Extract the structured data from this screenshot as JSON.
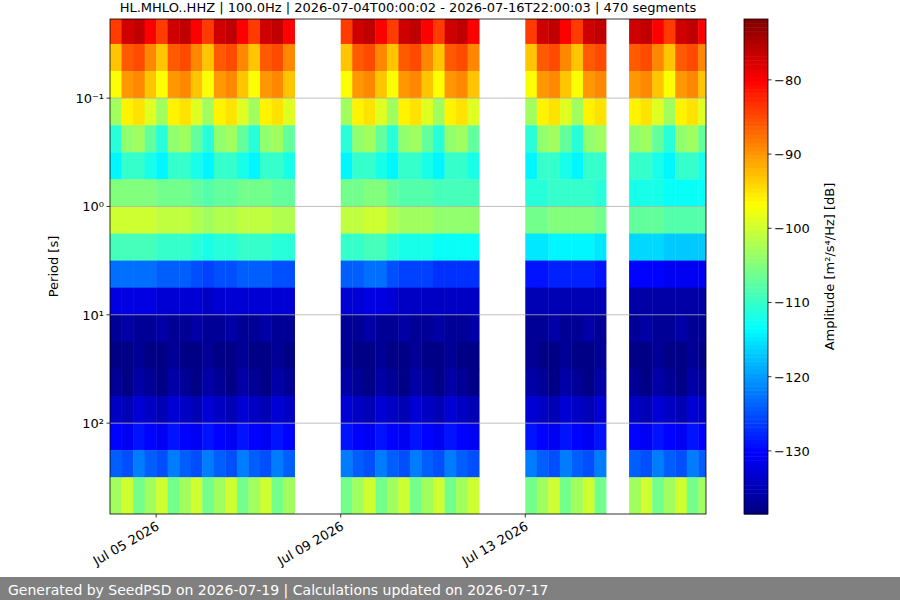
{
  "chart_data": {
    "type": "heatmap",
    "title": "HL.MHLO..HHZ | 100.0Hz | 2026-07-04T00:00:02 - 2026-07-16T22:00:03 | 470 segments",
    "ylabel": "Period [s]",
    "footer": "Generated by SeedPSD on 2026-07-19 | Calculations updated on 2026-07-17",
    "log": "y",
    "grid": "y",
    "xlim": [
      "2026-07-04T00:00:02",
      "2026-07-16T22:00:03"
    ],
    "xticks": [
      {
        "value": "2026-07-05T00:00",
        "label": "Jul 05 2026"
      },
      {
        "value": "2026-07-09T00:00",
        "label": "Jul 09 2026"
      },
      {
        "value": "2026-07-13T00:00",
        "label": "Jul 13 2026"
      }
    ],
    "ylim": [
      0.0186,
      690
    ],
    "yticks": [
      {
        "value": 0.1,
        "label": "10⁻¹"
      },
      {
        "value": 1,
        "label": "10⁰"
      },
      {
        "value": 10,
        "label": "10¹"
      },
      {
        "value": 100,
        "label": "10²"
      }
    ],
    "x_edges": [
      "2026-07-04T00:00",
      "2026-07-04T06:00",
      "2026-07-04T12:00",
      "2026-07-04T18:00",
      "2026-07-05T00:00",
      "2026-07-05T06:00",
      "2026-07-05T12:00",
      "2026-07-05T18:00",
      "2026-07-06T00:00",
      "2026-07-06T06:00",
      "2026-07-06T12:00",
      "2026-07-06T18:00",
      "2026-07-07T00:00",
      "2026-07-07T06:00",
      "2026-07-07T12:00",
      "2026-07-07T18:00",
      "2026-07-08T00:00",
      "2026-07-08T06:00",
      "2026-07-08T12:00",
      "2026-07-08T18:00",
      "2026-07-09T00:00",
      "2026-07-09T06:00",
      "2026-07-09T12:00",
      "2026-07-09T18:00",
      "2026-07-10T00:00",
      "2026-07-10T06:00",
      "2026-07-10T12:00",
      "2026-07-10T18:00",
      "2026-07-11T00:00",
      "2026-07-11T06:00",
      "2026-07-11T12:00",
      "2026-07-11T18:00",
      "2026-07-12T00:00",
      "2026-07-12T06:00",
      "2026-07-12T12:00",
      "2026-07-12T18:00",
      "2026-07-13T00:00",
      "2026-07-13T06:00",
      "2026-07-13T12:00",
      "2026-07-13T18:00",
      "2026-07-14T00:00",
      "2026-07-14T06:00",
      "2026-07-14T12:00",
      "2026-07-14T18:00",
      "2026-07-15T00:00",
      "2026-07-15T06:00",
      "2026-07-15T12:00",
      "2026-07-15T18:00",
      "2026-07-16T00:00",
      "2026-07-16T06:00",
      "2026-07-16T12:00",
      "2026-07-16T18:00",
      "2026-07-17T00:00"
    ],
    "period_edges": [
      0.0186,
      0.0316,
      0.0562,
      0.1,
      0.178,
      0.316,
      0.562,
      1,
      1.78,
      3.16,
      5.62,
      10,
      17.8,
      31.6,
      56.2,
      100,
      178,
      316,
      690
    ],
    "cells": [
      [
        -84,
        -93,
        -97,
        -103,
        -111,
        -114,
        -105,
        -100,
        -109,
        -123,
        -132,
        -137,
        -138,
        -137,
        -134,
        -130,
        -124,
        -103
      ],
      [
        -77,
        -86,
        -90,
        -96,
        -104,
        -110,
        -105,
        -100,
        -109,
        -123,
        -132,
        -136,
        -138,
        -138,
        -135,
        -131,
        -125,
        -100
      ],
      [
        -76,
        -85,
        -89,
        -95,
        -103,
        -110,
        -105,
        -100,
        -109,
        -123,
        -132,
        -137,
        -137,
        -136,
        -133,
        -129,
        -122,
        -106
      ],
      [
        -80,
        -89,
        -93,
        -99,
        -107,
        -112,
        -105,
        -100,
        -109,
        -123,
        -132,
        -137,
        -138,
        -137,
        -134,
        -130,
        -124,
        -103
      ],
      [
        -84,
        -93,
        -97,
        -103,
        -111,
        -114,
        -106,
        -101,
        -110,
        -124,
        -133,
        -136,
        -138,
        -138,
        -135,
        -131,
        -125,
        -100
      ],
      [
        -77,
        -86,
        -90,
        -96,
        -104,
        -110,
        -106,
        -101,
        -110,
        -124,
        -133,
        -137,
        -137,
        -136,
        -133,
        -129,
        -122,
        -106
      ],
      [
        -76,
        -85,
        -89,
        -95,
        -103,
        -110,
        -106,
        -101,
        -110,
        -124,
        -133,
        -137,
        -138,
        -137,
        -134,
        -130,
        -124,
        -103
      ],
      [
        -80,
        -89,
        -93,
        -99,
        -107,
        -112,
        -107,
        -102,
        -111,
        -125,
        -133,
        -136,
        -138,
        -138,
        -135,
        -131,
        -125,
        -100
      ],
      [
        -84,
        -93,
        -97,
        -103,
        -111,
        -114,
        -108,
        -103,
        -112,
        -126,
        -134,
        -137,
        -137,
        -136,
        -133,
        -129,
        -122,
        -106
      ],
      [
        -77,
        -86,
        -90,
        -96,
        -104,
        -110,
        -107,
        -102,
        -111,
        -125,
        -133,
        -137,
        -138,
        -137,
        -134,
        -130,
        -124,
        -103
      ],
      [
        -76,
        -85,
        -89,
        -95,
        -103,
        -110,
        -107,
        -102,
        -111,
        -125,
        -133,
        -136,
        -138,
        -138,
        -135,
        -131,
        -125,
        -100
      ],
      [
        -80,
        -89,
        -93,
        -99,
        -107,
        -112,
        -106,
        -101,
        -110,
        -124,
        -133,
        -137,
        -137,
        -136,
        -133,
        -129,
        -122,
        -106
      ],
      [
        -84,
        -93,
        -97,
        -103,
        -111,
        -114,
        -106,
        -101,
        -110,
        -124,
        -133,
        -137,
        -138,
        -137,
        -134,
        -130,
        -124,
        -103
      ],
      [
        -77,
        -86,
        -90,
        -96,
        -104,
        -110,
        -106,
        -101,
        -110,
        -124,
        -133,
        -136,
        -138,
        -138,
        -135,
        -131,
        -125,
        -100
      ],
      [
        -76,
        -85,
        -89,
        -95,
        -103,
        -110,
        -107,
        -102,
        -111,
        -125,
        -133,
        -137,
        -137,
        -136,
        -133,
        -129,
        -122,
        -106
      ],
      [
        -80,
        -89,
        -93,
        -99,
        -107,
        -112,
        -107,
        -102,
        -111,
        -125,
        -133,
        -137,
        -138,
        -137,
        -134,
        -130,
        -124,
        -103
      ],
      null,
      null,
      null,
      null,
      [
        -84,
        -93,
        -97,
        -103,
        -111,
        -114,
        -106,
        -101,
        -110,
        -124,
        -133,
        -137,
        -137,
        -136,
        -133,
        -129,
        -122,
        -106
      ],
      [
        -77,
        -86,
        -90,
        -96,
        -104,
        -110,
        -106,
        -101,
        -110,
        -124,
        -133,
        -137,
        -138,
        -137,
        -134,
        -130,
        -124,
        -103
      ],
      [
        -76,
        -85,
        -89,
        -95,
        -103,
        -110,
        -105,
        -100,
        -109,
        -123,
        -132,
        -136,
        -138,
        -138,
        -135,
        -131,
        -125,
        -100
      ],
      [
        -80,
        -89,
        -93,
        -99,
        -107,
        -112,
        -105,
        -100,
        -109,
        -123,
        -132,
        -137,
        -137,
        -136,
        -133,
        -129,
        -122,
        -106
      ],
      [
        -84,
        -93,
        -97,
        -103,
        -111,
        -114,
        -107,
        -102,
        -111,
        -125,
        -133,
        -137,
        -138,
        -137,
        -134,
        -130,
        -124,
        -103
      ],
      [
        -77,
        -86,
        -90,
        -96,
        -104,
        -110,
        -108,
        -103,
        -112,
        -126,
        -134,
        -136,
        -138,
        -138,
        -135,
        -131,
        -125,
        -100
      ],
      [
        -76,
        -85,
        -89,
        -95,
        -103,
        -110,
        -108,
        -103,
        -112,
        -126,
        -134,
        -137,
        -137,
        -136,
        -133,
        -129,
        -122,
        -106
      ],
      [
        -80,
        -89,
        -93,
        -99,
        -107,
        -112,
        -108,
        -103,
        -112,
        -126,
        -134,
        -137,
        -138,
        -137,
        -134,
        -130,
        -124,
        -103
      ],
      [
        -84,
        -93,
        -97,
        -103,
        -111,
        -114,
        -109,
        -104,
        -113,
        -127,
        -134,
        -136,
        -138,
        -138,
        -135,
        -131,
        -125,
        -100
      ],
      [
        -77,
        -86,
        -90,
        -96,
        -104,
        -110,
        -109,
        -104,
        -113,
        -127,
        -134,
        -137,
        -137,
        -136,
        -133,
        -129,
        -122,
        -106
      ],
      [
        -76,
        -85,
        -89,
        -95,
        -103,
        -110,
        -109,
        -104,
        -113,
        -127,
        -134,
        -137,
        -138,
        -137,
        -134,
        -130,
        -124,
        -103
      ],
      [
        -80,
        -89,
        -93,
        -99,
        -107,
        -112,
        -109,
        -104,
        -113,
        -127,
        -134,
        -136,
        -138,
        -138,
        -135,
        -131,
        -125,
        -100
      ],
      null,
      null,
      null,
      null,
      [
        -84,
        -93,
        -97,
        -103,
        -111,
        -114,
        -111,
        -106,
        -115,
        -129,
        -135,
        -137,
        -137,
        -136,
        -133,
        -129,
        -122,
        -106
      ],
      [
        -77,
        -86,
        -90,
        -96,
        -104,
        -110,
        -111,
        -106,
        -115,
        -129,
        -135,
        -137,
        -138,
        -137,
        -134,
        -130,
        -124,
        -103
      ],
      [
        -76,
        -85,
        -89,
        -95,
        -103,
        -110,
        -110,
        -105,
        -114,
        -128,
        -135,
        -136,
        -138,
        -138,
        -135,
        -131,
        -125,
        -100
      ],
      [
        -80,
        -89,
        -93,
        -99,
        -107,
        -112,
        -110,
        -105,
        -114,
        -128,
        -135,
        -137,
        -137,
        -136,
        -133,
        -129,
        -122,
        -106
      ],
      [
        -84,
        -93,
        -97,
        -103,
        -111,
        -114,
        -110,
        -105,
        -114,
        -128,
        -135,
        -137,
        -138,
        -137,
        -134,
        -130,
        -124,
        -103
      ],
      [
        -77,
        -86,
        -90,
        -96,
        -104,
        -110,
        -110,
        -105,
        -114,
        -128,
        -135,
        -136,
        -138,
        -138,
        -135,
        -131,
        -125,
        -100
      ],
      [
        -76,
        -85,
        -89,
        -95,
        -103,
        -110,
        -111,
        -106,
        -115,
        -129,
        -135,
        -137,
        -137,
        -136,
        -133,
        -129,
        -122,
        -106
      ],
      null,
      null,
      [
        -77,
        -86,
        -90,
        -96,
        -104,
        -110,
        -112,
        -107,
        -116,
        -130,
        -136,
        -137,
        -138,
        -137,
        -134,
        -130,
        -124,
        -103
      ],
      [
        -76,
        -85,
        -89,
        -95,
        -103,
        -110,
        -112,
        -107,
        -116,
        -130,
        -136,
        -136,
        -138,
        -138,
        -135,
        -131,
        -125,
        -100
      ],
      [
        -80,
        -89,
        -93,
        -99,
        -107,
        -112,
        -112,
        -107,
        -116,
        -130,
        -136,
        -137,
        -137,
        -136,
        -133,
        -129,
        -122,
        -106
      ],
      [
        -84,
        -93,
        -97,
        -103,
        -111,
        -114,
        -113,
        -108,
        -117,
        -131,
        -136,
        -137,
        -138,
        -137,
        -134,
        -130,
        -124,
        -103
      ],
      [
        -77,
        -86,
        -90,
        -96,
        -104,
        -110,
        -113,
        -108,
        -117,
        -131,
        -136,
        -136,
        -138,
        -138,
        -135,
        -131,
        -125,
        -100
      ],
      [
        -76,
        -85,
        -89,
        -95,
        -103,
        -110,
        -113,
        -108,
        -117,
        -131,
        -136,
        -137,
        -137,
        -136,
        -133,
        -129,
        -122,
        -106
      ],
      [
        -80,
        -89,
        -93,
        -99,
        -107,
        -112,
        -113,
        -108,
        -117,
        -131,
        -136,
        -137,
        -138,
        -137,
        -134,
        -130,
        -124,
        -103
      ]
    ],
    "colorbar": {
      "range": [
        -138.5,
        -71.8
      ],
      "ticks": [
        {
          "value": -80,
          "label": "−80"
        },
        {
          "value": -90,
          "label": "−90"
        },
        {
          "value": -100,
          "label": "−100"
        },
        {
          "value": -110,
          "label": "−110"
        },
        {
          "value": -120,
          "label": "−120"
        },
        {
          "value": -130,
          "label": "−130"
        }
      ],
      "label": "Amplitude [m²/s⁴/Hz] [dB]"
    }
  }
}
